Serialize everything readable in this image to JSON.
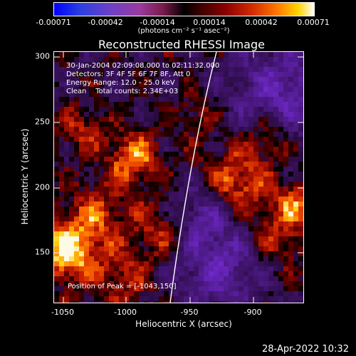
{
  "colorbar": {
    "labels": [
      "-0.00071",
      "-0.00042",
      "-0.00014",
      "0.00014",
      "0.00042",
      "0.00071"
    ],
    "units": "(photons cm⁻² s⁻¹ asec⁻²)"
  },
  "title": "Reconstructed RHESSI Image",
  "info": {
    "time": "30-Jan-2004 02:09:08.000 to 02:11:32.000",
    "detectors": "Detectors: 3F 4F 5F 6F 7F 8F, Att 0",
    "energy": "Energy Range: 12.0 - 25.0 keV",
    "clean": "Clean    Total counts: 2.34E+03",
    "peak": "Position of Peak = [-1043,150]"
  },
  "axes": {
    "xlabel": "Heliocentric X (arcsec)",
    "ylabel": "Heliocentric Y (arcsec)",
    "xticks": [
      "-1050",
      "-1000",
      "-950",
      "-900"
    ],
    "yticks": [
      "300",
      "250",
      "200",
      "150"
    ]
  },
  "timestamp": "28-Apr-2022 10:32"
}
